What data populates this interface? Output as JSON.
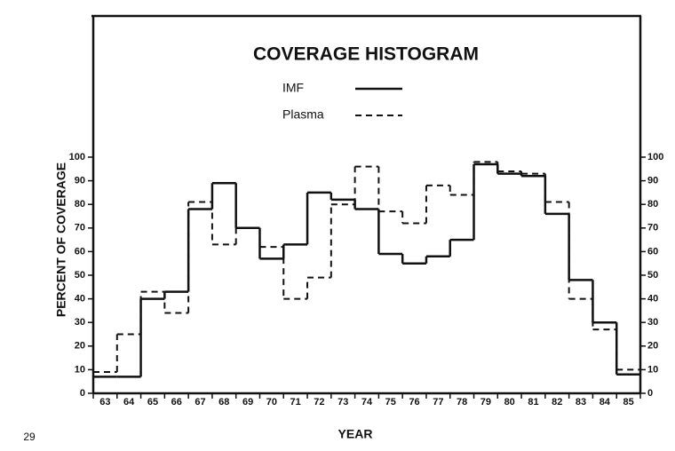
{
  "chart_data": {
    "type": "step",
    "title": "COVERAGE HISTOGRAM",
    "x_label": "YEAR",
    "y_label": "PERCENT OF COVERAGE",
    "page_number": "29",
    "categories": [
      "63",
      "64",
      "65",
      "66",
      "67",
      "68",
      "69",
      "70",
      "71",
      "72",
      "73",
      "74",
      "75",
      "76",
      "77",
      "78",
      "79",
      "80",
      "81",
      "82",
      "83",
      "84",
      "85"
    ],
    "series": [
      {
        "name": "IMF",
        "color": "#111111",
        "dashed": false,
        "values": [
          7,
          7,
          40,
          43,
          78,
          89,
          70,
          57,
          63,
          85,
          82,
          78,
          59,
          55,
          58,
          65,
          97,
          93,
          92,
          76,
          48,
          30,
          8
        ]
      },
      {
        "name": "Plasma",
        "color": "#111111",
        "dashed": true,
        "values": [
          9,
          25,
          43,
          34,
          81,
          63,
          70,
          62,
          40,
          49,
          80,
          96,
          77,
          72,
          88,
          84,
          98,
          94,
          93,
          81,
          40,
          27,
          10
        ]
      }
    ],
    "ylim": [
      0,
      100
    ],
    "yticks": [
      0,
      10,
      20,
      30,
      40,
      50,
      60,
      70,
      80,
      90,
      100
    ],
    "right_axis_ticks": true
  }
}
